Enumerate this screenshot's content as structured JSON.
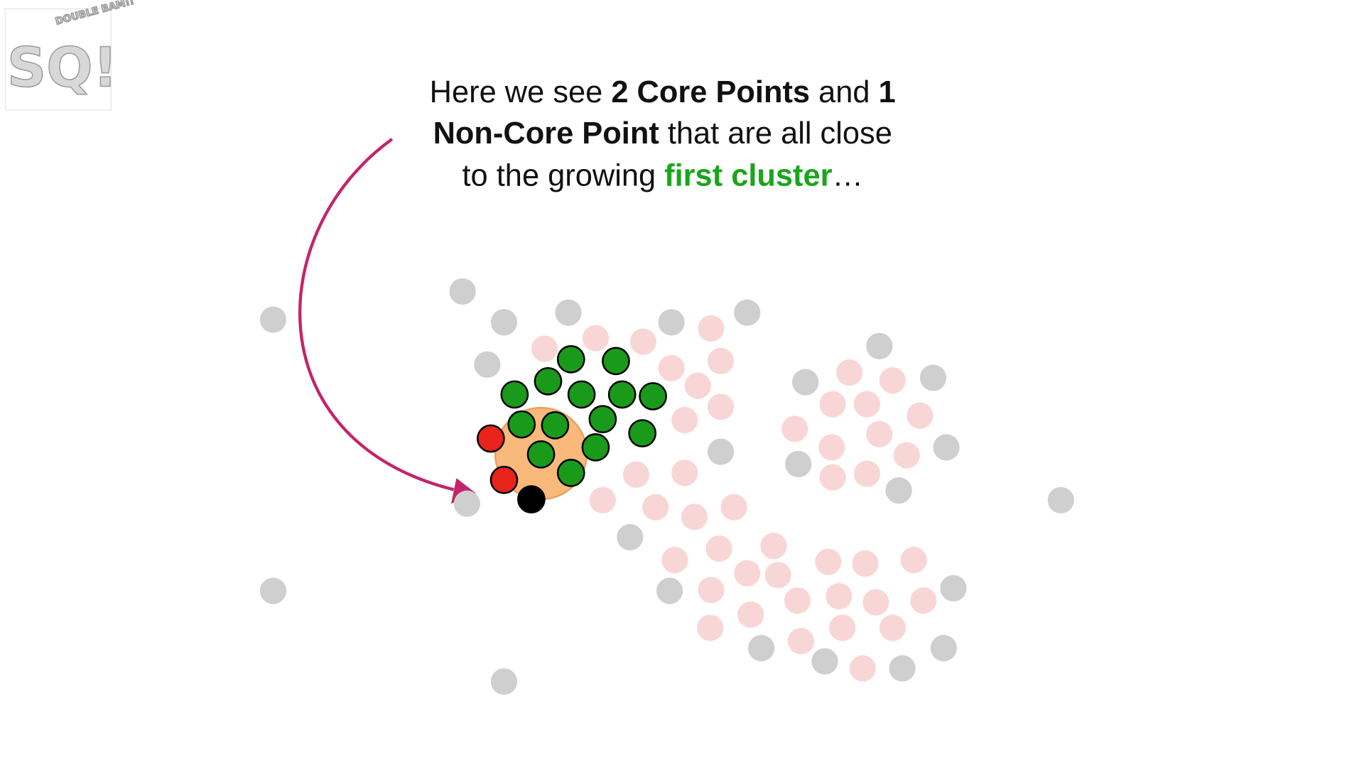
{
  "logo": {
    "mark": "SQ!",
    "tagline": "DOUBLE BAM!!"
  },
  "caption": {
    "lines": [
      [
        "Here we see ",
        "2 Core Points",
        " and ",
        "1"
      ],
      [
        "Non-Core Point",
        " that are all close"
      ],
      [
        "to the growing ",
        "first cluster",
        "…"
      ]
    ]
  }
}
